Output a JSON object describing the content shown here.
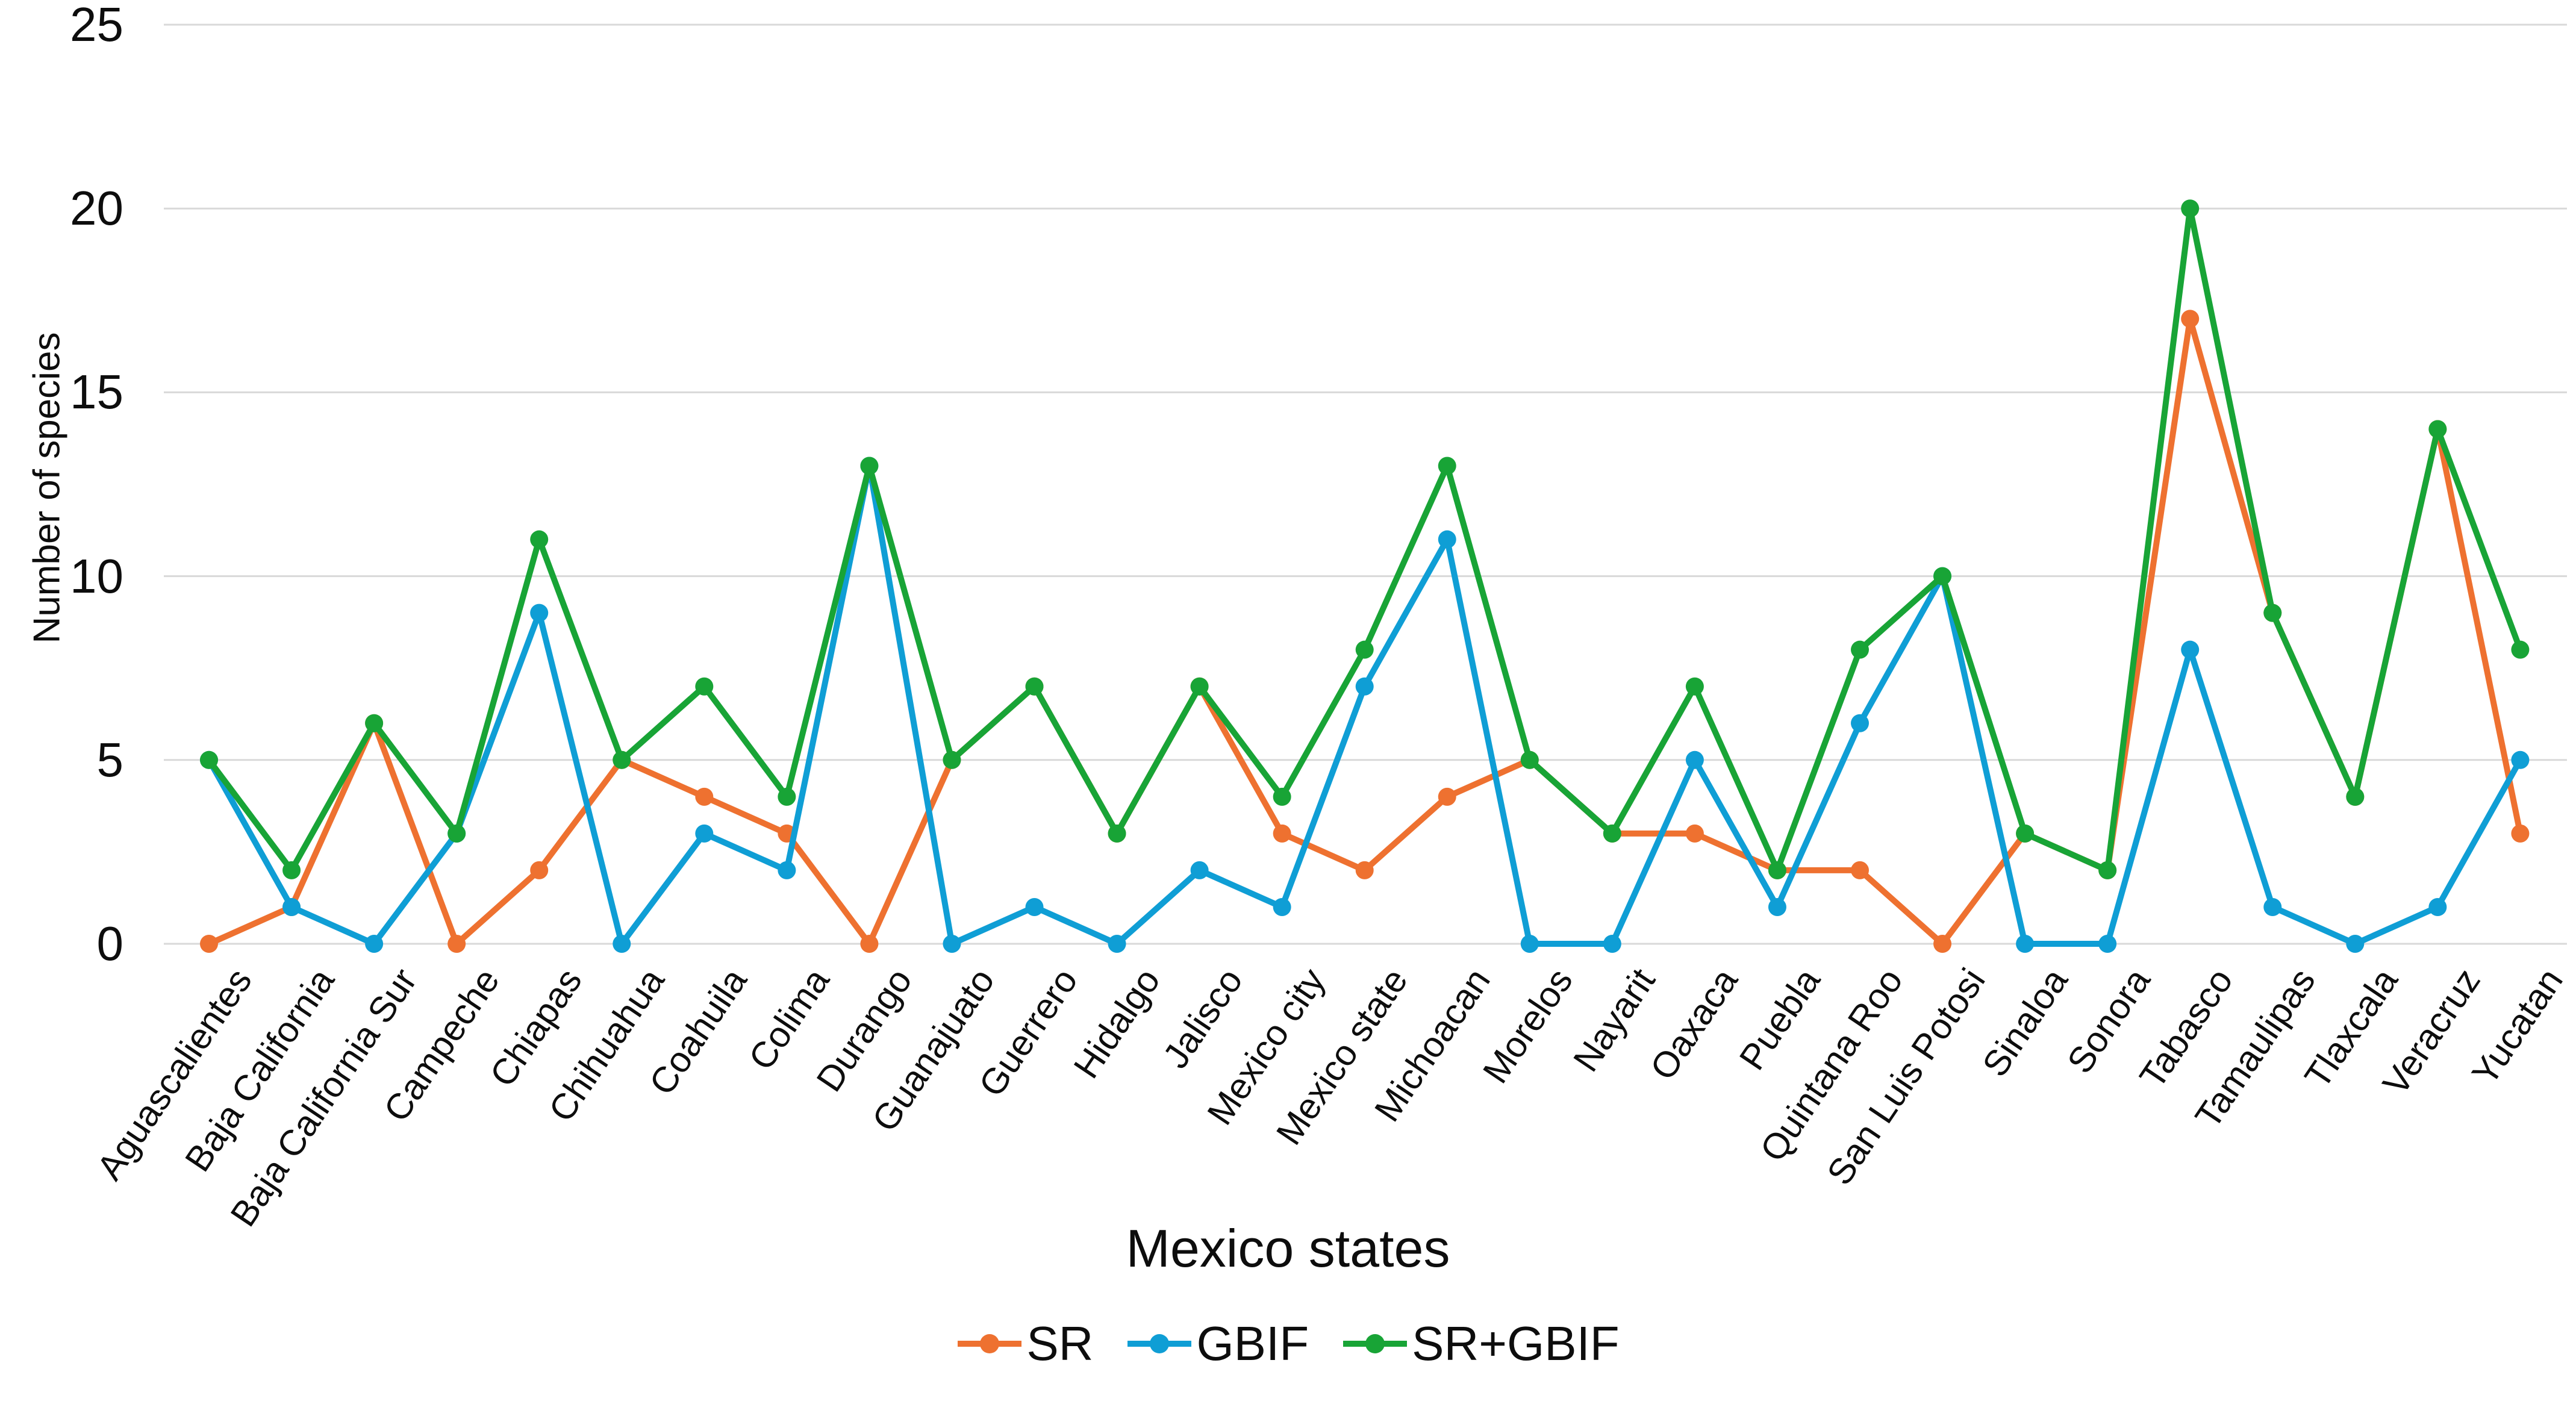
{
  "figure": {
    "background": "#ffffff",
    "grid_color": "#d9d9d9",
    "text_color": "#0d0d0d"
  },
  "chart_data": {
    "type": "line",
    "title": "",
    "xlabel": "Mexico states",
    "ylabel": "Number of species",
    "ylim": [
      0,
      25
    ],
    "yticks": [
      0,
      5,
      10,
      15,
      20,
      25
    ],
    "grid": true,
    "legend_position": "bottom",
    "marker": "circle",
    "categories": [
      "Aguascalientes",
      "Baja California",
      "Baja California Sur",
      "Campeche",
      "Chiapas",
      "Chihuahua",
      "Coahuila",
      "Colima",
      "Durango",
      "Guanajuato",
      "Guerrero",
      "Hidalgo",
      "Jalisco",
      "Mexico city",
      "Mexico state",
      "Michoacan",
      "Morelos",
      "Nayarit",
      "Oaxaca",
      "Puebla",
      "Quintana Roo",
      "San Luis Potosi",
      "Sinaloa",
      "Sonora",
      "Tabasco",
      "Tamaulipas",
      "Tlaxcala",
      "Veracruz",
      "Yucatan"
    ],
    "series": [
      {
        "name": "SR",
        "color": "#EE7130",
        "values": [
          0,
          1,
          6,
          0,
          2,
          5,
          4,
          3,
          0,
          5,
          7,
          3,
          7,
          3,
          2,
          4,
          5,
          3,
          3,
          2,
          2,
          0,
          3,
          2,
          17,
          9,
          4,
          14,
          3
        ]
      },
      {
        "name": "GBIF",
        "color": "#0F9ED5",
        "values": [
          5,
          1,
          0,
          3,
          9,
          0,
          3,
          2,
          13,
          0,
          1,
          0,
          2,
          1,
          7,
          11,
          0,
          0,
          5,
          1,
          6,
          10,
          0,
          0,
          8,
          1,
          0,
          1,
          5
        ]
      },
      {
        "name": "SR+GBIF",
        "color": "#18A436",
        "values": [
          5,
          2,
          6,
          3,
          11,
          5,
          7,
          4,
          13,
          5,
          7,
          3,
          7,
          4,
          8,
          13,
          5,
          3,
          7,
          2,
          8,
          10,
          3,
          2,
          20,
          9,
          4,
          14,
          8
        ]
      }
    ]
  }
}
